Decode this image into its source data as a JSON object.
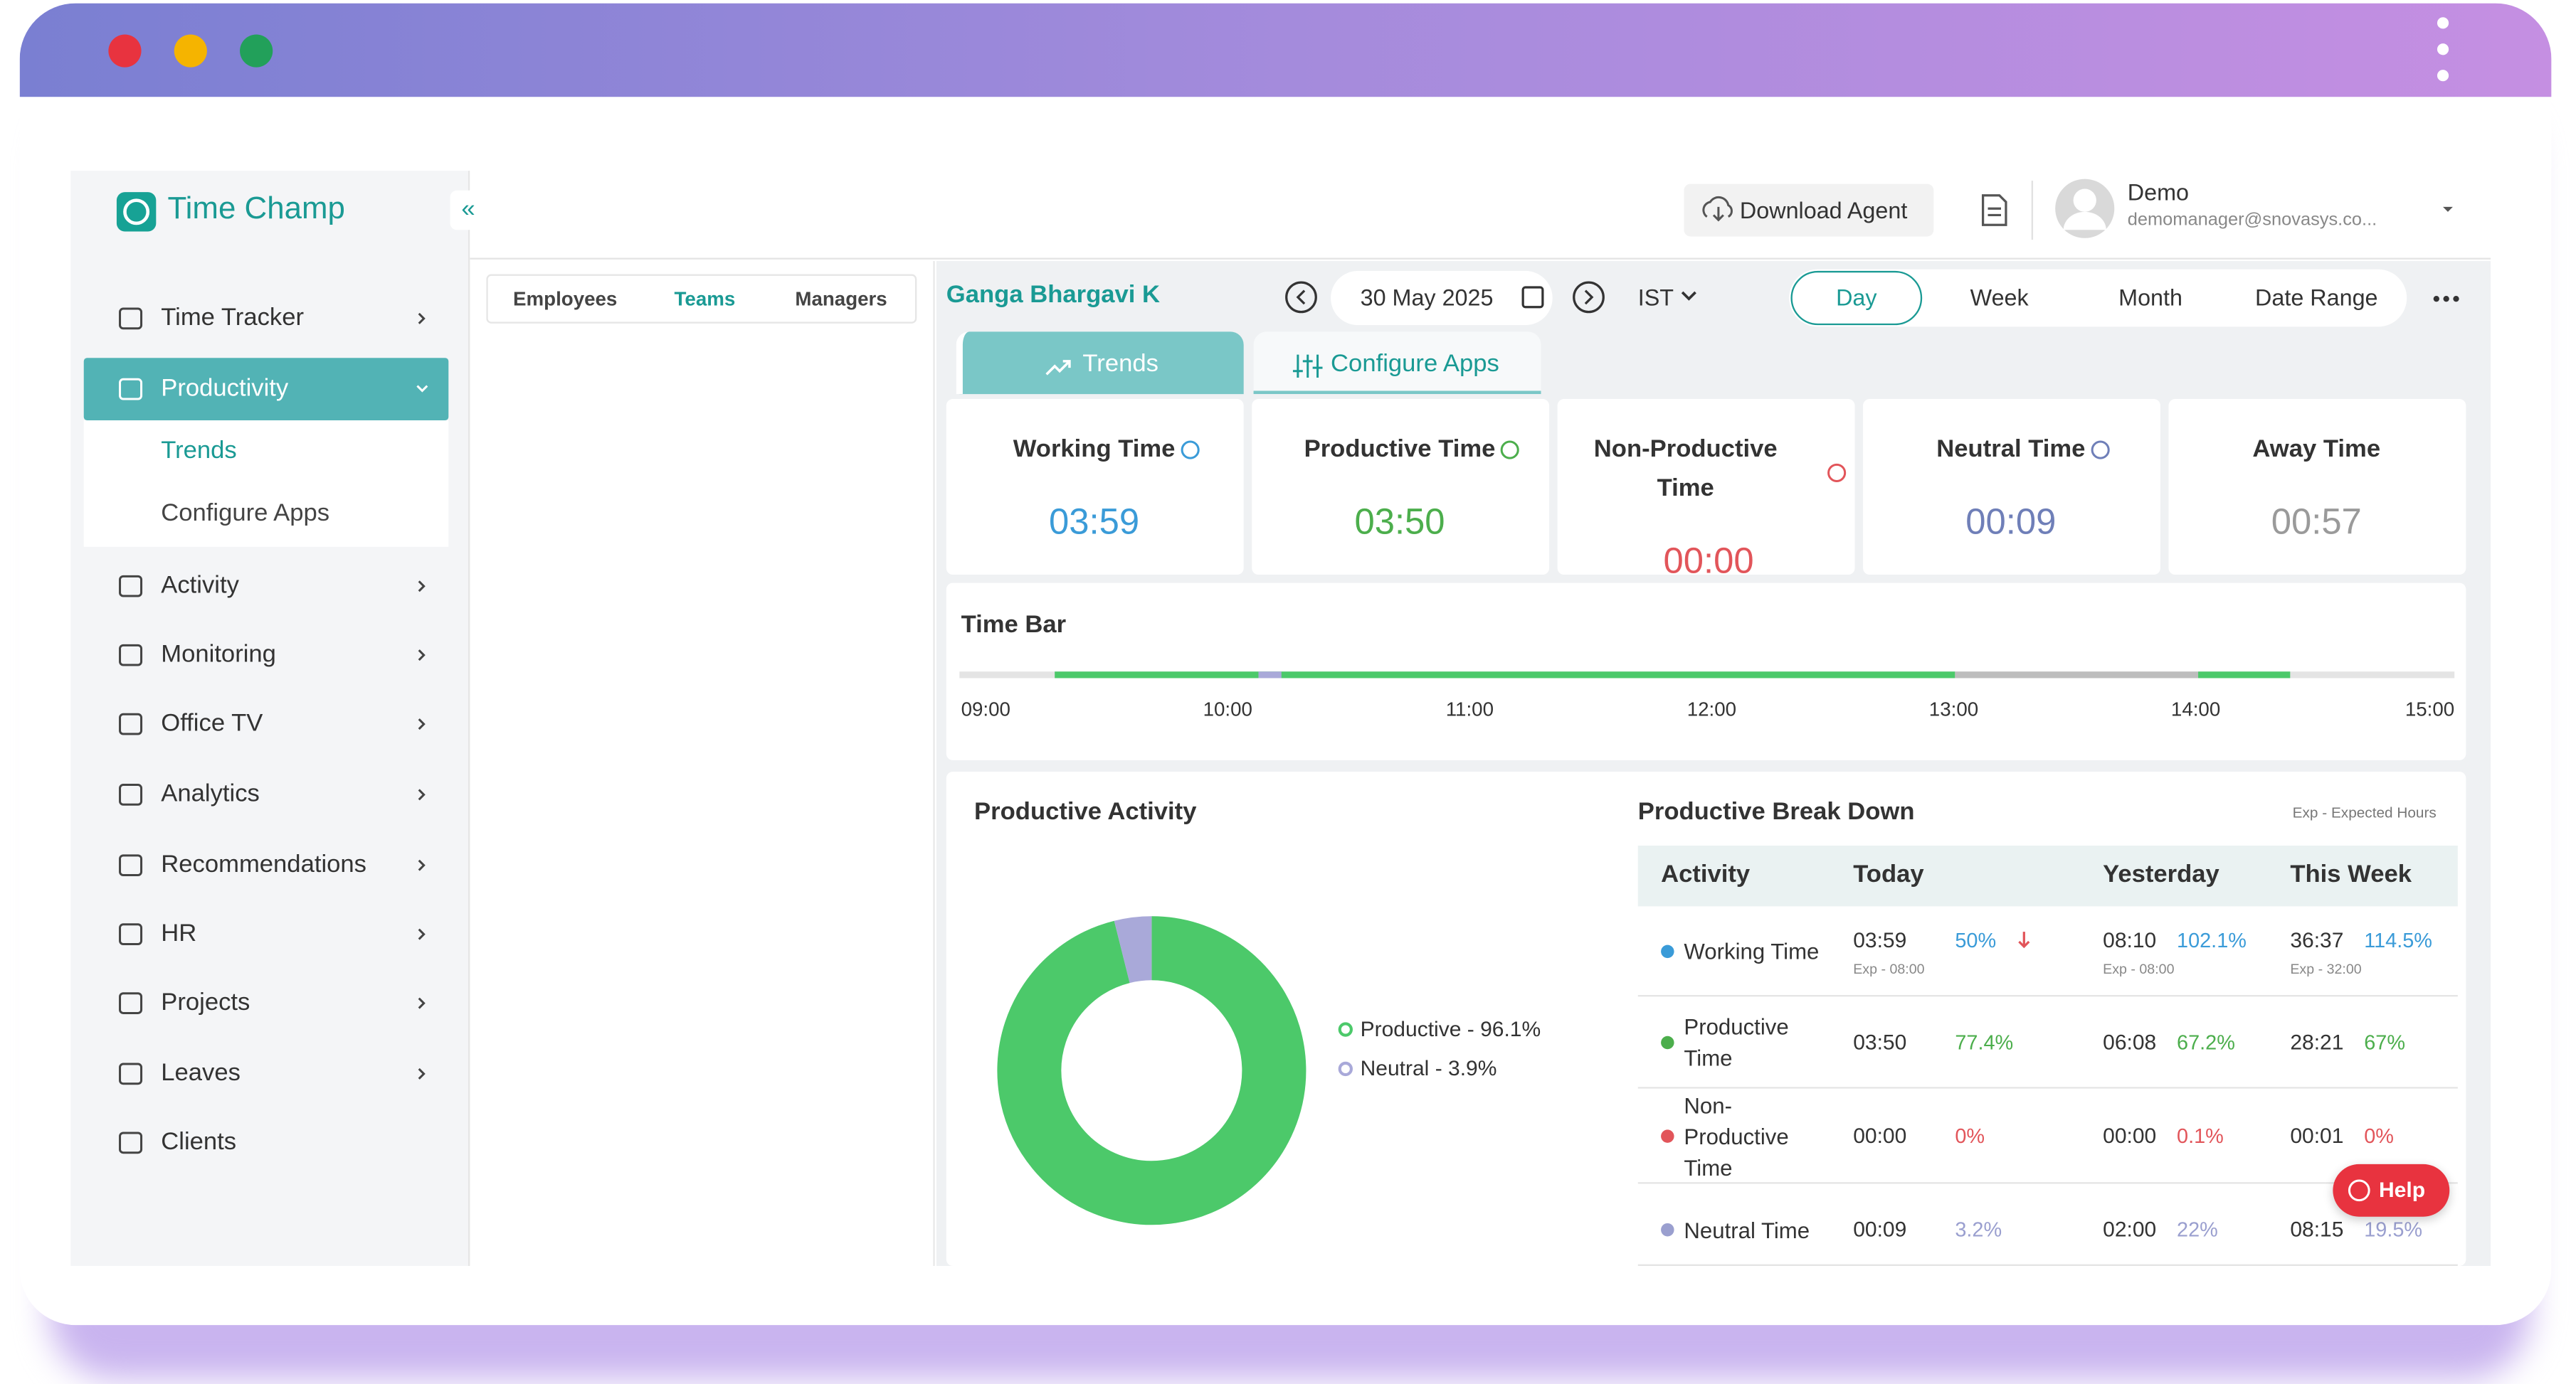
{
  "sidebar": {
    "brand": "Time Champ",
    "collapse": "«",
    "menu": [
      "Time Tracker",
      "Productivity",
      "Activity",
      "Monitoring",
      "Office TV",
      "Analytics",
      "Recommendations",
      "HR",
      "Projects",
      "Leaves",
      "Clients"
    ],
    "submenu": [
      "Trends",
      "Configure Apps"
    ]
  },
  "header": {
    "download_agent": "Download Agent",
    "user_name": "Demo",
    "user_email": "demomanager@snovasys.co..."
  },
  "filter_tabs": [
    "Employees",
    "Teams",
    "Managers"
  ],
  "toolbar": {
    "employee": "Ganga Bhargavi K",
    "date": "30 May 2025",
    "timezone": "IST",
    "ranges": [
      "Day",
      "Week",
      "Month",
      "Date Range"
    ]
  },
  "view_tabs": [
    "Trends",
    "Configure Apps"
  ],
  "cards": [
    {
      "title": "Working Time",
      "value": "03:59",
      "color": "#3a9bd8"
    },
    {
      "title": "Productive Time",
      "value": "03:50",
      "color": "#4cae4c"
    },
    {
      "title": "Non-Productive Time",
      "value": "00:00",
      "color": "#e2555a"
    },
    {
      "title": "Neutral Time",
      "value": "00:09",
      "color": "#6f7fb8"
    },
    {
      "title": "Away Time",
      "value": "00:57",
      "color": "#9a9a9a"
    }
  ],
  "time_bar": {
    "title": "Time Bar",
    "ticks": [
      "09:00",
      "10:00",
      "11:00",
      "12:00",
      "13:00",
      "14:00",
      "15:00"
    ]
  },
  "chart_data": {
    "type": "pie",
    "title": "Productive Activity",
    "categories": [
      "Productive - 96.1%",
      "Neutral - 3.9%"
    ],
    "values": [
      96.1,
      3.9
    ],
    "colors": [
      "#4cc96a",
      "#a9a9d9"
    ],
    "donut": true
  },
  "breakdown": {
    "title": "Productive Break Down",
    "note": "Exp - Expected Hours",
    "columns": [
      "Activity",
      "Today",
      "Yesterday",
      "This Week"
    ],
    "rows": [
      {
        "activity": "Working Time",
        "color": "#3a9bd8",
        "today": {
          "time": "03:59",
          "percent": "50%",
          "expected": "Exp - 08:00"
        },
        "yesterday": {
          "time": "08:10",
          "percent": "102.1%",
          "expected": "Exp - 08:00"
        },
        "this_week": {
          "time": "36:37",
          "percent": "114.5%",
          "expected": "Exp - 32:00"
        }
      },
      {
        "activity": "Productive Time",
        "color": "#4cae4c",
        "today": {
          "time": "03:50",
          "percent": "77.4%"
        },
        "yesterday": {
          "time": "06:08",
          "percent": "67.2%"
        },
        "this_week": {
          "time": "28:21",
          "percent": "67%"
        }
      },
      {
        "activity": "Non-Productive Time",
        "color": "#e2555a",
        "today": {
          "time": "00:00",
          "percent": "0%"
        },
        "yesterday": {
          "time": "00:00",
          "percent": "0.1%"
        },
        "this_week": {
          "time": "00:01",
          "percent": "0%"
        }
      },
      {
        "activity": "Neutral Time",
        "color": "#9a9fcf",
        "today": {
          "time": "00:09",
          "percent": "3.2%"
        },
        "yesterday": {
          "time": "02:00",
          "percent": "22%"
        },
        "this_week": {
          "time": "08:15",
          "percent": "19.5%"
        }
      }
    ]
  },
  "help": "Help"
}
